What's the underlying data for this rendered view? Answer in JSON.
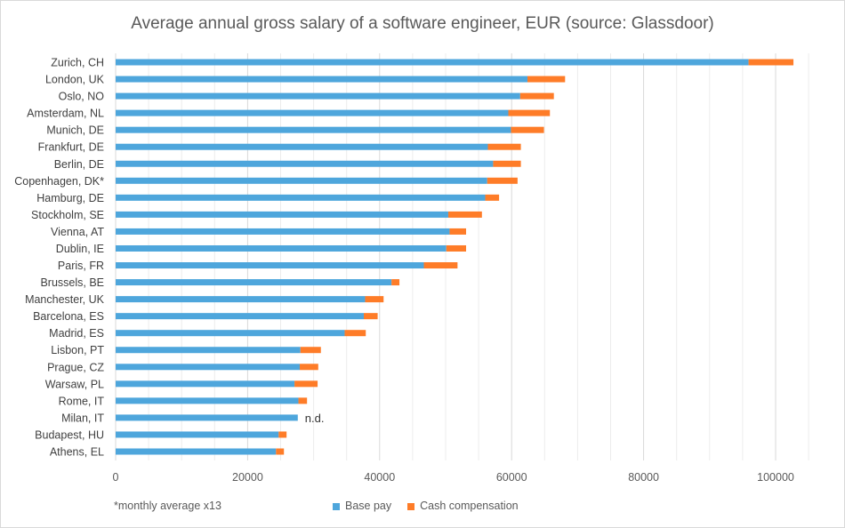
{
  "chart_data": {
    "type": "bar",
    "orientation": "horizontal",
    "stacked": true,
    "title": "Average annual gross salary of a software engineer, EUR (source: Glassdoor)",
    "categories": [
      "Zurich, CH",
      "London, UK",
      "Oslo, NO",
      "Amsterdam, NL",
      "Munich, DE",
      "Frankfurt, DE",
      "Berlin, DE",
      "Copenhagen, DK*",
      "Hamburg, DE",
      "Stockholm, SE",
      "Vienna, AT",
      "Dublin, IE",
      "Paris, FR",
      "Brussels, BE",
      "Manchester, UK",
      "Barcelona, ES",
      "Madrid, ES",
      "Lisbon, PT",
      "Prague, CZ",
      "Warsaw, PL",
      "Rome, IT",
      "Milan, IT",
      "Budapest, HU",
      "Athens, EL"
    ],
    "series": [
      {
        "name": "Base pay",
        "color": "#4ea6dc",
        "values": [
          95900,
          62400,
          61300,
          59500,
          59900,
          56400,
          57200,
          56300,
          56000,
          50400,
          50600,
          50100,
          46700,
          41800,
          37800,
          37600,
          34700,
          28000,
          27900,
          27100,
          27700,
          27600,
          24700,
          24300
        ]
      },
      {
        "name": "Cash compensation",
        "color": "#fe7c28",
        "values": [
          6800,
          5700,
          5100,
          6300,
          5000,
          5000,
          4200,
          4600,
          2100,
          5100,
          2500,
          3000,
          5100,
          1200,
          2800,
          2100,
          3200,
          3100,
          2800,
          3500,
          1300,
          null,
          1200,
          1200
        ]
      }
    ],
    "annotations": [
      {
        "category": "Milan, IT",
        "text": "n.d."
      }
    ],
    "xlim": [
      0,
      105000
    ],
    "xticks": [
      "0",
      "20000",
      "40000",
      "60000",
      "80000",
      "100000"
    ],
    "xtick_values": [
      0,
      20000,
      40000,
      60000,
      80000,
      100000
    ],
    "grid": true,
    "legend_position": "bottom",
    "footnote": "*monthly average x13"
  }
}
